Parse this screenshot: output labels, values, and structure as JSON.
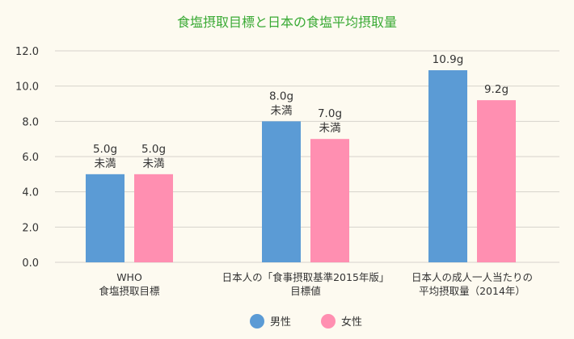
{
  "chart_data": {
    "type": "bar",
    "title": "食塩摂取目標と日本の食塩平均摂取量",
    "xlabel": "",
    "ylabel": "",
    "ylim": [
      0,
      12
    ],
    "yticks": [
      "0.0",
      "2.0",
      "4.0",
      "6.0",
      "8.0",
      "10.0",
      "12.0"
    ],
    "grid": true,
    "legend_position": "bottom-center",
    "categories": [
      [
        "WHO",
        "食塩摂取目標"
      ],
      [
        "日本人の「食事摂取基準2015年版」",
        "目標値"
      ],
      [
        "日本人の成人一人当たりの",
        "平均摂取量（2014年）"
      ]
    ],
    "series": [
      {
        "name": "男性",
        "color": "#5b9bd5",
        "values": [
          5.0,
          8.0,
          10.9
        ],
        "labels": [
          [
            "5.0g",
            "未満"
          ],
          [
            "8.0g",
            "未満"
          ],
          [
            "10.9g"
          ]
        ]
      },
      {
        "name": "女性",
        "color": "#ff8fb1",
        "values": [
          5.0,
          7.0,
          9.2
        ],
        "labels": [
          [
            "5.0g",
            "未満"
          ],
          [
            "7.0g",
            "未満"
          ],
          [
            "9.2g"
          ]
        ]
      }
    ],
    "colors": {
      "title": "#3aaa35",
      "grid": "#d6d3cc",
      "background": "#fdfaf0"
    }
  }
}
